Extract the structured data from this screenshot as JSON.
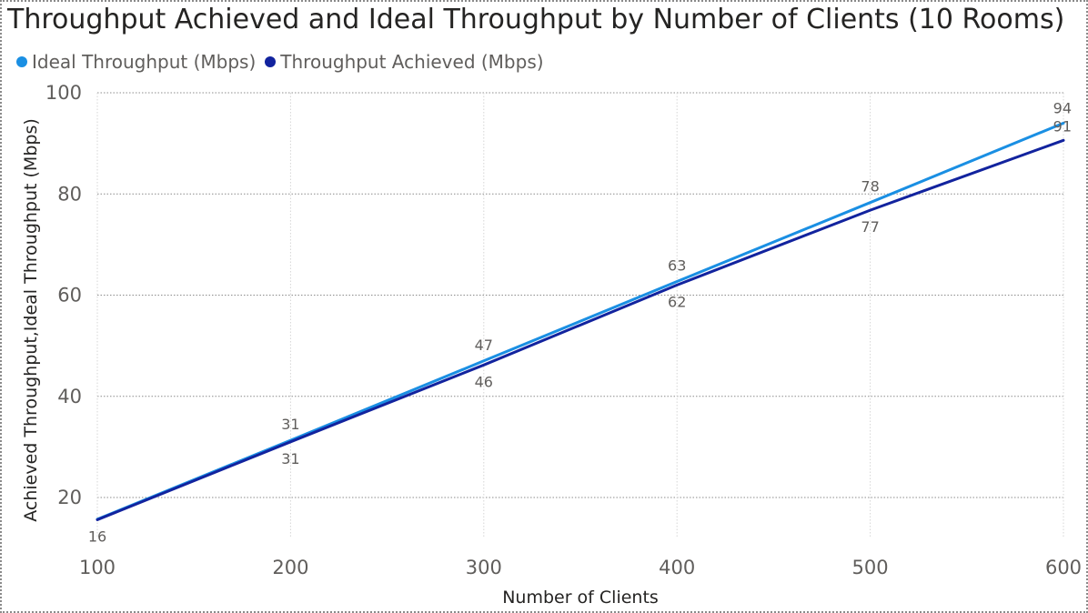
{
  "chart_data": {
    "type": "line",
    "title": "Throughput Achieved and Ideal Throughput by Number of Clients (10 Rooms)",
    "xlabel": "Number of Clients",
    "ylabel": "Achieved Throughput,Ideal Throughput (Mbps)",
    "x": [
      100,
      200,
      300,
      400,
      500,
      600
    ],
    "x_ticks": [
      "100",
      "200",
      "300",
      "400",
      "500",
      "600"
    ],
    "y_ticks": [
      "20",
      "40",
      "60",
      "80",
      "100"
    ],
    "xlim": [
      100,
      600
    ],
    "ylim": [
      12,
      100
    ],
    "grid": true,
    "legend_position": "top-left",
    "series": [
      {
        "name": "Ideal Throughput (Mbps)",
        "color": "#1a8fe3",
        "values": [
          15.7,
          31.3,
          47,
          62.7,
          78.3,
          94
        ],
        "labels": [
          "",
          "31",
          "47",
          "63",
          "78",
          "94"
        ]
      },
      {
        "name": "Throughput Achieved (Mbps)",
        "color": "#12239e",
        "values": [
          15.6,
          31,
          46.2,
          62,
          76.8,
          90.6
        ],
        "labels": [
          "16",
          "31",
          "46",
          "62",
          "77",
          "91"
        ]
      }
    ]
  }
}
